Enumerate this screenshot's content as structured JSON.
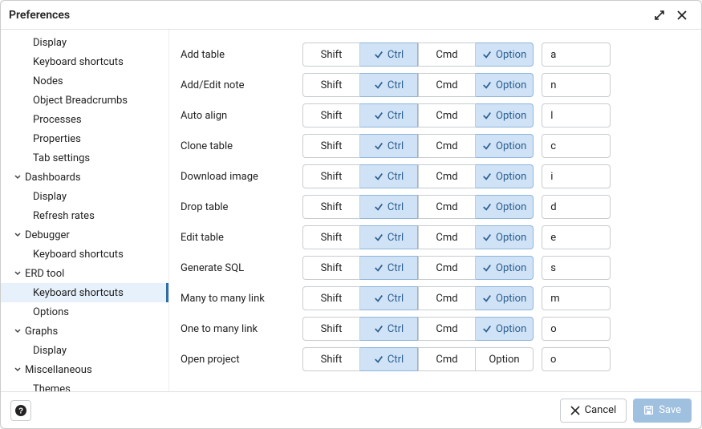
{
  "window": {
    "title": "Preferences"
  },
  "footer": {
    "cancel_label": "Cancel",
    "save_label": "Save"
  },
  "modifiers": {
    "shift": "Shift",
    "ctrl": "Ctrl",
    "cmd": "Cmd",
    "option": "Option"
  },
  "colors": {
    "mod_active_bg": "#cfe2f6",
    "mod_active_text": "#2d5f91",
    "selected_bg": "#e6f1fb",
    "selected_border": "#2f6ea5",
    "primary_btn_bg": "#9fc0df"
  },
  "sidebar": {
    "leading_leaves": [
      "Display",
      "Keyboard shortcuts",
      "Nodes",
      "Object Breadcrumbs",
      "Processes",
      "Properties",
      "Tab settings"
    ],
    "groups": [
      {
        "label": "Dashboards",
        "children": [
          "Display",
          "Refresh rates"
        ],
        "expanded": true
      },
      {
        "label": "Debugger",
        "children": [
          "Keyboard shortcuts"
        ],
        "expanded": true
      },
      {
        "label": "ERD tool",
        "children": [
          "Keyboard shortcuts",
          "Options"
        ],
        "expanded": true,
        "selected_child": 0
      },
      {
        "label": "Graphs",
        "children": [
          "Display"
        ],
        "expanded": true
      },
      {
        "label": "Miscellaneous",
        "children": [
          "Themes"
        ],
        "expanded": true
      }
    ]
  },
  "shortcuts": [
    {
      "label": "Add table",
      "shift": false,
      "ctrl": true,
      "cmd": false,
      "option": true,
      "key": "a"
    },
    {
      "label": "Add/Edit note",
      "shift": false,
      "ctrl": true,
      "cmd": false,
      "option": true,
      "key": "n"
    },
    {
      "label": "Auto align",
      "shift": false,
      "ctrl": true,
      "cmd": false,
      "option": true,
      "key": "l"
    },
    {
      "label": "Clone table",
      "shift": false,
      "ctrl": true,
      "cmd": false,
      "option": true,
      "key": "c"
    },
    {
      "label": "Download image",
      "shift": false,
      "ctrl": true,
      "cmd": false,
      "option": true,
      "key": "i"
    },
    {
      "label": "Drop table",
      "shift": false,
      "ctrl": true,
      "cmd": false,
      "option": true,
      "key": "d"
    },
    {
      "label": "Edit table",
      "shift": false,
      "ctrl": true,
      "cmd": false,
      "option": true,
      "key": "e"
    },
    {
      "label": "Generate SQL",
      "shift": false,
      "ctrl": true,
      "cmd": false,
      "option": true,
      "key": "s"
    },
    {
      "label": "Many to many link",
      "shift": false,
      "ctrl": true,
      "cmd": false,
      "option": true,
      "key": "m"
    },
    {
      "label": "One to many link",
      "shift": false,
      "ctrl": true,
      "cmd": false,
      "option": true,
      "key": "o"
    },
    {
      "label": "Open project",
      "shift": false,
      "ctrl": true,
      "cmd": false,
      "option": false,
      "key": "o"
    }
  ]
}
